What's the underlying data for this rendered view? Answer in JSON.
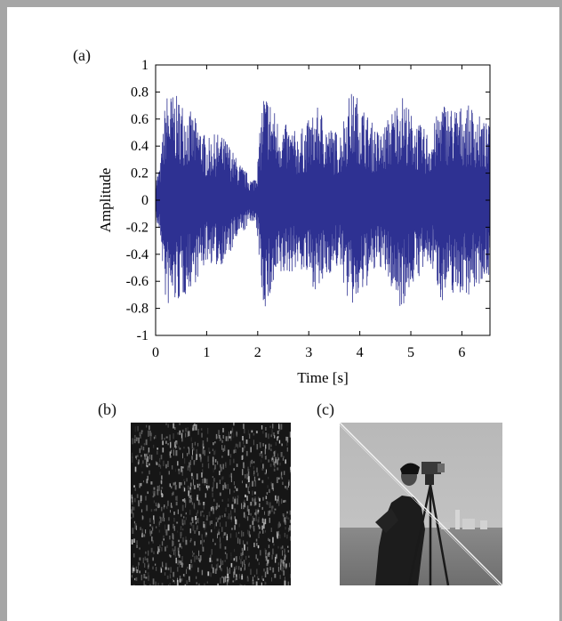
{
  "panels": {
    "a": {
      "label": "(a)"
    },
    "b": {
      "label": "(b)",
      "description_color": "#1a1a1a"
    },
    "c": {
      "label": "(c)"
    }
  },
  "colors": {
    "signal": "#2e3192",
    "frame": "#a6a6a6"
  },
  "chart_data": {
    "type": "line",
    "title": "",
    "xlabel": "Time [s]",
    "ylabel": "Amplitude",
    "xlim": [
      0,
      6.55
    ],
    "ylim": [
      -1,
      1
    ],
    "xticks": [
      0,
      1,
      2,
      3,
      4,
      5,
      6
    ],
    "yticks": [
      -1,
      -0.8,
      -0.6,
      -0.4,
      -0.2,
      0,
      0.2,
      0.4,
      0.6,
      0.8,
      1
    ],
    "ytick_labels": [
      "-1",
      "-0.8",
      "-0.6",
      "-0.4",
      "-0.2",
      "0",
      "0.2",
      "0.4",
      "0.6",
      "0.8",
      "1"
    ],
    "grid": false,
    "envelope": {
      "t": [
        0,
        0.1,
        0.2,
        0.3,
        0.5,
        0.7,
        0.9,
        1.0,
        1.2,
        1.4,
        1.6,
        1.8,
        1.9,
        2.0,
        2.1,
        2.2,
        2.4,
        2.6,
        2.8,
        3.0,
        3.2,
        3.4,
        3.6,
        3.8,
        3.9,
        4.0,
        4.2,
        4.4,
        4.6,
        4.8,
        4.9,
        5.0,
        5.2,
        5.4,
        5.6,
        5.8,
        6.0,
        6.2,
        6.4,
        6.55
      ],
      "amp": [
        0.15,
        0.3,
        0.8,
        0.8,
        0.75,
        0.65,
        0.55,
        0.45,
        0.5,
        0.45,
        0.3,
        0.2,
        0.15,
        0.3,
        0.8,
        0.8,
        0.6,
        0.55,
        0.5,
        0.6,
        0.7,
        0.55,
        0.5,
        0.8,
        0.8,
        0.75,
        0.6,
        0.5,
        0.65,
        0.8,
        0.75,
        0.65,
        0.55,
        0.5,
        0.75,
        0.7,
        0.7,
        0.7,
        0.6,
        0.55
      ]
    }
  }
}
